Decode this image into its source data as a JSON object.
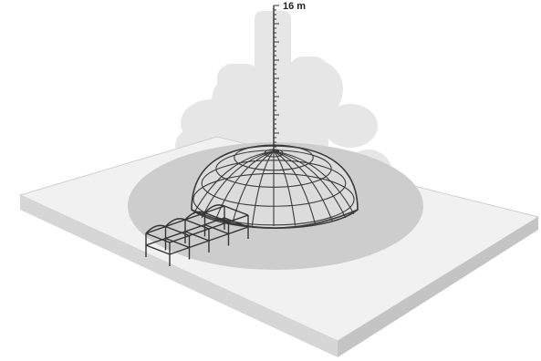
{
  "diagram": {
    "scale_bar": {
      "label": "16 m"
    },
    "colors": {
      "slab_top": "#f1f1f1",
      "slab_front": "#d6d6d6",
      "slab_side": "#c4c4c4",
      "shadow_zone": "#cdcdcd",
      "background_plume": "#e6e6e6",
      "dome_fill": "#dcdcdc",
      "grid_line": "#3a3a3a",
      "annex_line": "#333333"
    },
    "elements": [
      "concrete-slab",
      "dome-structure",
      "entrance-walkway",
      "background-plume",
      "vertical-scale-bar"
    ]
  }
}
